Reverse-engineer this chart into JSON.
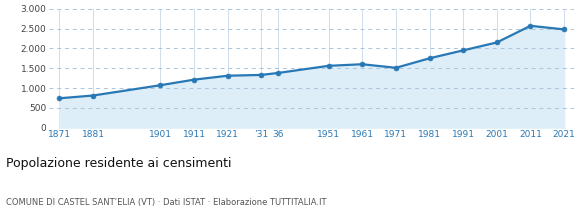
{
  "years": [
    1871,
    1881,
    1901,
    1911,
    1921,
    1931,
    1936,
    1951,
    1961,
    1971,
    1981,
    1991,
    2001,
    2011,
    2021
  ],
  "population": [
    740,
    810,
    1070,
    1210,
    1310,
    1330,
    1380,
    1560,
    1600,
    1510,
    1750,
    1950,
    2150,
    2570,
    2480
  ],
  "x_tick_labels": [
    "1871",
    "1881",
    "1901",
    "1911",
    "1921",
    "’31",
    "36",
    "1951",
    "1961",
    "1971",
    "1981",
    "1991",
    "2001",
    "2011",
    "2021"
  ],
  "yticks": [
    0,
    500,
    1000,
    1500,
    2000,
    2500,
    3000
  ],
  "ytick_labels": [
    "0",
    "500",
    "1.000",
    "1.500",
    "2.000",
    "2.500",
    "3.000"
  ],
  "ylabel_text": "Popolazione residente ai censimenti",
  "subtitle_text": "COMUNE DI CASTEL SANT’ELIA (VT) · Dati ISTAT · Elaborazione TUTTITALIA.IT",
  "line_color": "#2878b5",
  "fill_color": "#ddeef8",
  "marker_color": "#2878b5",
  "background_color": "#ffffff",
  "grid_color": "#aac4da",
  "axis_label_color": "#2878b5",
  "tick_color": "#444444",
  "subtitle_color": "#555555",
  "ylim": [
    0,
    3000
  ],
  "line_width": 1.6,
  "marker_size": 3.5
}
